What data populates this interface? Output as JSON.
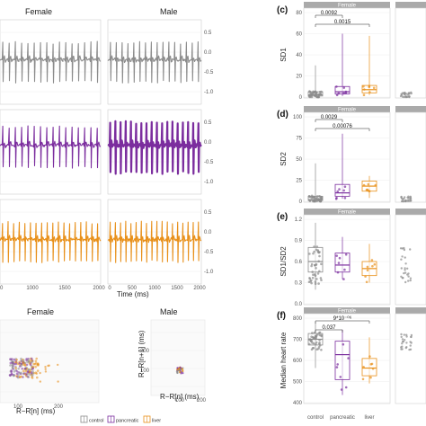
{
  "ecg": {
    "col_titles": [
      "Female",
      "Male"
    ],
    "x_ticks": [
      "0",
      "1000",
      "1500",
      "2000"
    ],
    "x_ticks_male": [
      "0",
      "500",
      "1000",
      "1500",
      "2000"
    ],
    "x_label": "Time (ms)",
    "y_ticks": [
      "0.5",
      "0.0",
      "-0.5",
      "-1.0"
    ],
    "rows": [
      {
        "name": "control",
        "color": "#8c8c8c",
        "beats": 16
      },
      {
        "name": "pancreatic",
        "color": "#7b2d9e",
        "beats": 16
      },
      {
        "name": "liver",
        "color": "#e8901a",
        "beats": 18
      }
    ]
  },
  "poincare": {
    "female_title": "Female",
    "male_title": "Male",
    "x_label": "R−R[n] (ms)",
    "y_label": "R−R[n+1] (ms)",
    "x_ticks_female": [
      "100",
      "200"
    ],
    "x_ticks_male": [
      "100",
      "200"
    ],
    "y_ticks_male": [
      "100",
      "200"
    ]
  },
  "legend": {
    "items": [
      "control",
      "pancreatic",
      "liver"
    ]
  },
  "box_panels": {
    "groups": [
      "control",
      "pancreatic",
      "liver"
    ],
    "strip_left": "Female",
    "panels": [
      {
        "letter": "(c)",
        "ylabel": "SD1",
        "ticks": [
          "80",
          "60",
          "40",
          "20",
          "0"
        ],
        "yrange": [
          0,
          80
        ],
        "pvals": [
          "0.0092",
          "0.0015"
        ],
        "boxes": [
          [
            0,
            1,
            2,
            5,
            30
          ],
          [
            1,
            3,
            5,
            10,
            60
          ],
          [
            2,
            4,
            7,
            11,
            58
          ]
        ]
      },
      {
        "letter": "(d)",
        "ylabel": "SD2",
        "ticks": [
          "100",
          "75",
          "50",
          "25",
          "0"
        ],
        "yrange": [
          0,
          100
        ],
        "pvals": [
          "0.0029",
          "0.00076"
        ],
        "boxes": [
          [
            0,
            1,
            2,
            6,
            45
          ],
          [
            3,
            6,
            10,
            20,
            80
          ],
          [
            4,
            12,
            18,
            24,
            30
          ]
        ]
      },
      {
        "letter": "(e)",
        "ylabel": "SD1/SD2",
        "ticks": [
          "1.2",
          "0.9",
          "0.6",
          "0.3",
          "0.0"
        ],
        "yrange": [
          0,
          1.2
        ],
        "pvals": [],
        "boxes": [
          [
            0.2,
            0.45,
            0.6,
            0.8,
            1.15
          ],
          [
            0.35,
            0.45,
            0.55,
            0.72,
            0.95
          ],
          [
            0.3,
            0.4,
            0.5,
            0.6,
            0.85
          ]
        ]
      },
      {
        "letter": "(f)",
        "ylabel": "Median heart rate",
        "ticks": [
          "800",
          "700",
          "600",
          "500",
          "400"
        ],
        "yrange": [
          380,
          820
        ],
        "pvals": [
          "9*10⁻⁰⁶",
          "0.037"
        ],
        "boxes": [
          [
            560,
            680,
            710,
            740,
            800
          ],
          [
            420,
            500,
            630,
            700,
            760
          ],
          [
            480,
            520,
            560,
            610,
            720
          ]
        ]
      }
    ]
  },
  "chart_data": [
    {
      "type": "line",
      "title": "",
      "xlabel": "Time (ms)",
      "ylabel": "",
      "xlim": [
        0,
        2000
      ],
      "ylim": [
        -1.2,
        0.8
      ],
      "facets": [
        "Female",
        "Male"
      ],
      "series": [
        {
          "name": "control"
        },
        {
          "name": "pancreatic"
        },
        {
          "name": "liver"
        }
      ]
    },
    {
      "type": "scatter",
      "title": "",
      "xlabel": "R−R[n] (ms)",
      "ylabel": "R−R[n+1] (ms)",
      "facets": [
        "Female",
        "Male"
      ]
    },
    {
      "type": "box",
      "title": "",
      "ylabel": "SD1",
      "categories": [
        "control",
        "pancreatic",
        "liver"
      ],
      "annotations": [
        "0.0092",
        "0.0015"
      ]
    },
    {
      "type": "box",
      "title": "",
      "ylabel": "SD2",
      "categories": [
        "control",
        "pancreatic",
        "liver"
      ],
      "annotations": [
        "0.0029",
        "0.00076"
      ]
    },
    {
      "type": "box",
      "title": "",
      "ylabel": "SD1/SD2",
      "categories": [
        "control",
        "pancreatic",
        "liver"
      ]
    },
    {
      "type": "box",
      "title": "",
      "ylabel": "Median heart rate",
      "categories": [
        "control",
        "pancreatic",
        "liver"
      ],
      "annotations": [
        "9*10⁻⁰⁶",
        "0.037"
      ]
    }
  ]
}
